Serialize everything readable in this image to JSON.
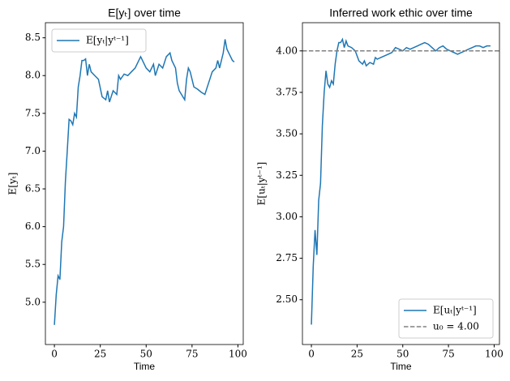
{
  "chart_data": [
    {
      "type": "line",
      "title": "E[yₜ] over time",
      "xlabel": "Time",
      "ylabel": "E[yₜ]",
      "xlim": [
        -4.9,
        102.9
      ],
      "xticks": [
        0,
        25,
        50,
        75,
        100
      ],
      "ylim": [
        4.44,
        8.7
      ],
      "yticks": [
        {
          "value": 5,
          "label": "5.0"
        },
        5.5,
        {
          "value": 6,
          "label": "6.0"
        },
        6.5,
        {
          "value": 7,
          "label": "7.0"
        },
        7.5,
        {
          "value": 8,
          "label": "8.0"
        },
        8.5
      ],
      "legend": "upper left",
      "series": [
        {
          "name": "E[yₜ|yᵗ⁻¹]",
          "color": "#1f77b4",
          "x": [
            0,
            1,
            2,
            3,
            4,
            5,
            6,
            7,
            8,
            9,
            10,
            11,
            12,
            13,
            14,
            15,
            16,
            17,
            18,
            19,
            20,
            22,
            24,
            26,
            28,
            29,
            30,
            32,
            34,
            35,
            36,
            38,
            40,
            42,
            44,
            46,
            47,
            48,
            50,
            52,
            54,
            55,
            57,
            59,
            61,
            63,
            64,
            66,
            67,
            68,
            70,
            71,
            72,
            73,
            74,
            76,
            78,
            80,
            82,
            84,
            86,
            88,
            89,
            90,
            92,
            93,
            94,
            96,
            97,
            98
          ],
          "values": [
            4.7,
            5.1,
            5.35,
            5.3,
            5.8,
            6.0,
            6.6,
            7.0,
            7.42,
            7.4,
            7.35,
            7.5,
            7.45,
            7.85,
            8.0,
            8.2,
            8.2,
            8.22,
            8.0,
            8.15,
            8.05,
            8.0,
            7.95,
            7.72,
            7.68,
            7.8,
            7.65,
            7.8,
            7.75,
            8.0,
            7.95,
            8.02,
            8.0,
            8.05,
            8.1,
            8.2,
            8.25,
            8.2,
            8.1,
            8.05,
            8.15,
            8.0,
            8.15,
            8.1,
            8.25,
            8.3,
            8.2,
            8.1,
            7.9,
            7.8,
            7.72,
            7.68,
            7.95,
            8.1,
            8.05,
            7.85,
            7.82,
            7.78,
            7.75,
            7.9,
            8.05,
            8.1,
            8.2,
            8.1,
            8.3,
            8.48,
            8.35,
            8.25,
            8.2,
            8.18
          ]
        }
      ]
    },
    {
      "type": "line",
      "title": "Inferred work ethic over time",
      "xlabel": "Time",
      "ylabel": "E[uₜ|yᵗ⁻¹]",
      "xlim": [
        -4.9,
        102.9
      ],
      "xticks": [
        0,
        25,
        50,
        75,
        100
      ],
      "ylim": [
        2.23,
        4.17
      ],
      "yticks": [
        {
          "value": 2.5,
          "label": "2.50"
        },
        {
          "value": 2.75,
          "label": "2.75"
        },
        {
          "value": 3,
          "label": "3.00"
        },
        {
          "value": 3.25,
          "label": "3.25"
        },
        {
          "value": 3.5,
          "label": "3.50"
        },
        {
          "value": 3.75,
          "label": "3.75"
        },
        {
          "value": 4,
          "label": "4.00"
        }
      ],
      "legend": "lower right",
      "reference": {
        "name": "u₀ = 4.00",
        "value": 4,
        "color": "#808080"
      },
      "series": [
        {
          "name": "E[uₜ|yᵗ⁻¹]",
          "color": "#1f77b4",
          "x": [
            0,
            1,
            2,
            3,
            4,
            5,
            6,
            7,
            8,
            9,
            10,
            11,
            12,
            13,
            14,
            15,
            16,
            17,
            18,
            19,
            20,
            22,
            24,
            26,
            28,
            29,
            30,
            32,
            34,
            35,
            36,
            38,
            40,
            42,
            44,
            46,
            48,
            50,
            52,
            54,
            56,
            58,
            60,
            62,
            64,
            66,
            68,
            70,
            72,
            74,
            76,
            78,
            80,
            82,
            84,
            86,
            88,
            90,
            92,
            94,
            96,
            98
          ],
          "values": [
            2.35,
            2.7,
            2.92,
            2.77,
            3.1,
            3.2,
            3.55,
            3.75,
            3.88,
            3.8,
            3.78,
            3.82,
            3.8,
            3.92,
            4.0,
            4.05,
            4.05,
            4.07,
            4.02,
            4.06,
            4.03,
            4.02,
            4.0,
            3.94,
            3.92,
            3.94,
            3.91,
            3.93,
            3.92,
            3.96,
            3.95,
            3.96,
            3.97,
            3.98,
            3.99,
            4.02,
            4.01,
            4.0,
            4.02,
            4.01,
            4.02,
            4.03,
            4.04,
            4.05,
            4.04,
            4.02,
            4.0,
            4.02,
            4.03,
            4.01,
            4.0,
            3.99,
            3.98,
            3.99,
            4.0,
            4.01,
            4.02,
            4.03,
            4.03,
            4.02,
            4.03,
            4.03
          ]
        }
      ]
    }
  ]
}
